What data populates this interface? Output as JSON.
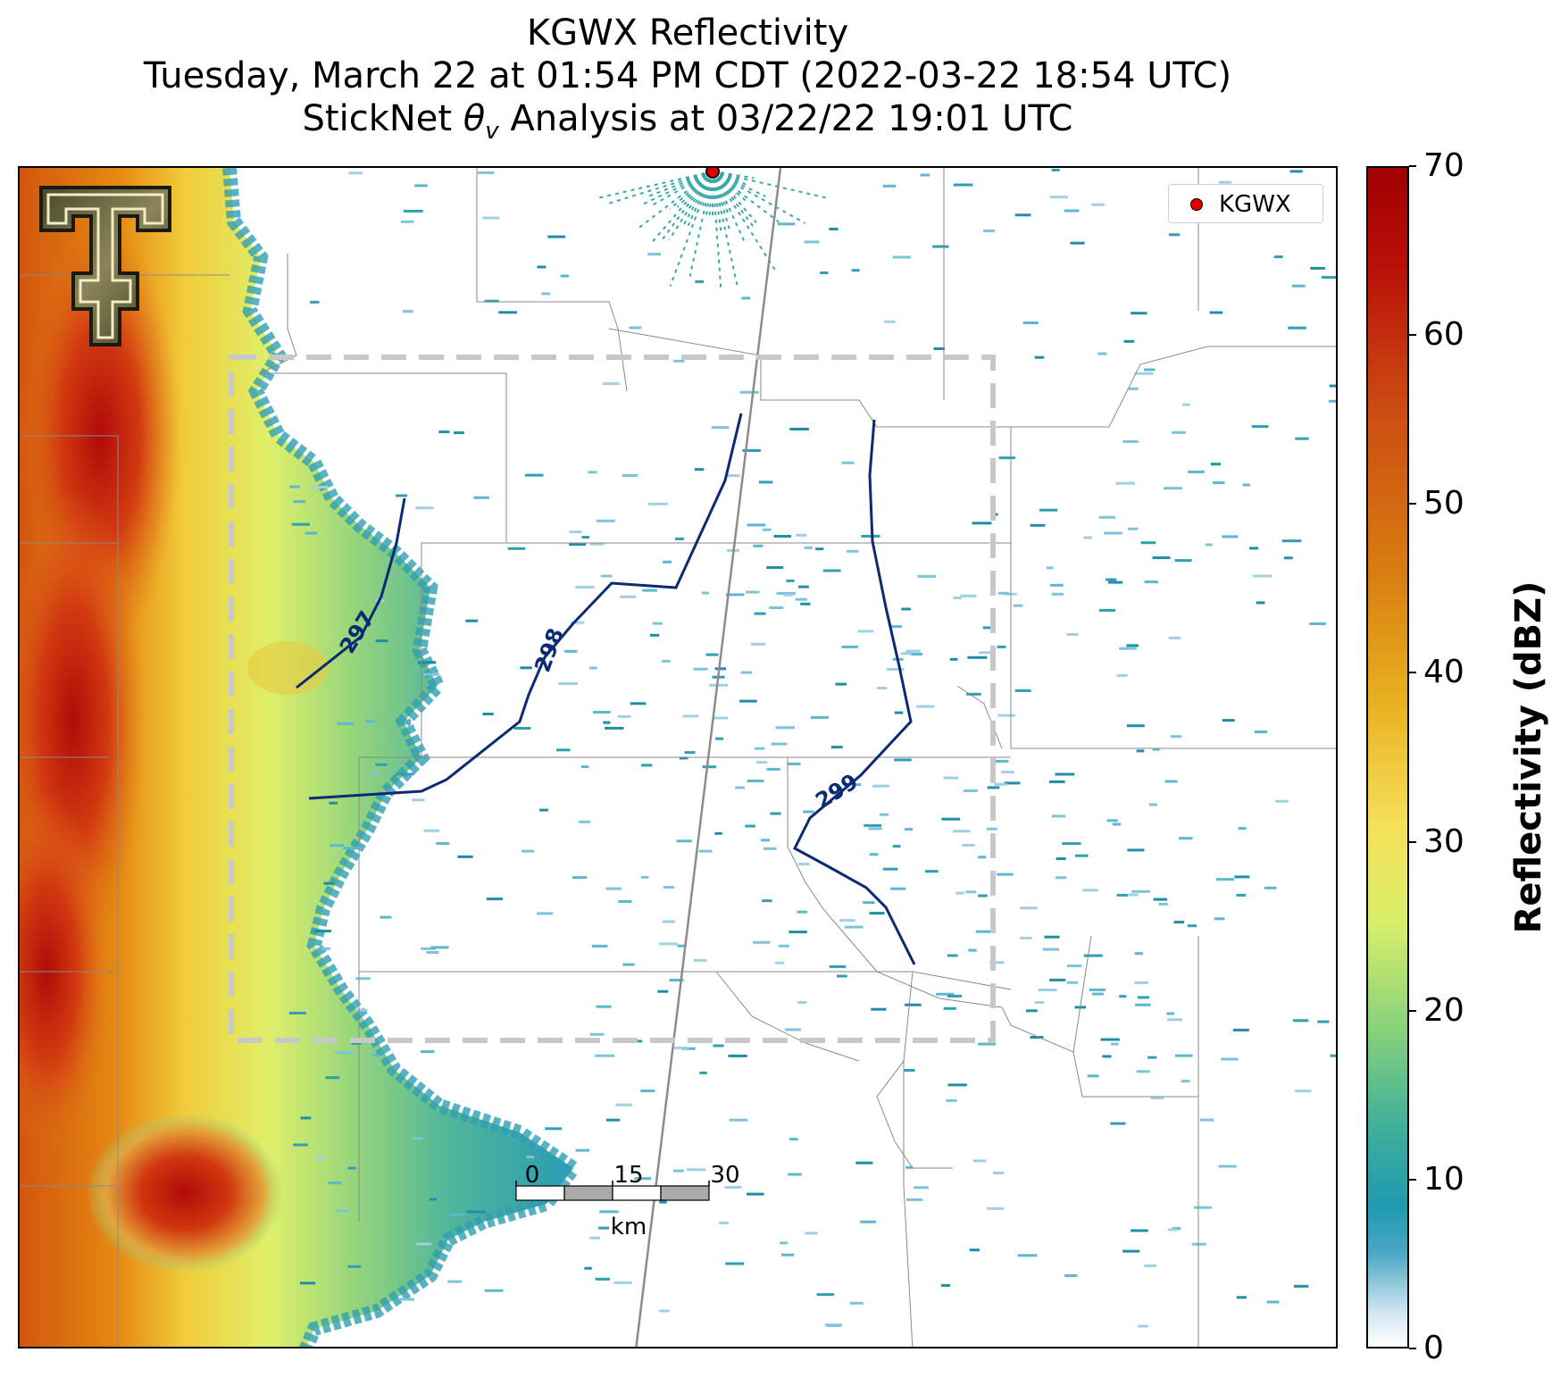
{
  "title": {
    "line1": "KGWX Reflectivity",
    "line2": "Tuesday, March 22 at 01:54 PM CDT (2022-03-22 18:54 UTC)",
    "line3_prefix": "StickNet ",
    "line3_symbol": "θ",
    "line3_subscript": "v",
    "line3_suffix": " Analysis at 03/22/22 19:01 UTC"
  },
  "legend": {
    "marker_color": "#e00000",
    "label": "KGWX"
  },
  "colorbar": {
    "title": "Reflectivity (dBZ)",
    "ticks": [
      "0",
      "10",
      "20",
      "30",
      "40",
      "50",
      "60",
      "70"
    ],
    "range": [
      0,
      70
    ]
  },
  "contours": [
    {
      "label": "297",
      "color": "#0b2a73"
    },
    {
      "label": "298",
      "color": "#0b2a73"
    },
    {
      "label": "299",
      "color": "#0b2a73"
    }
  ],
  "scalebar": {
    "ticks": [
      "0",
      "15",
      "30"
    ],
    "unit": "km"
  },
  "analysis_box": {
    "style": "dashed",
    "color": "#c8c8c8"
  },
  "logo": {
    "icon": "double-t-logo-icon"
  }
}
